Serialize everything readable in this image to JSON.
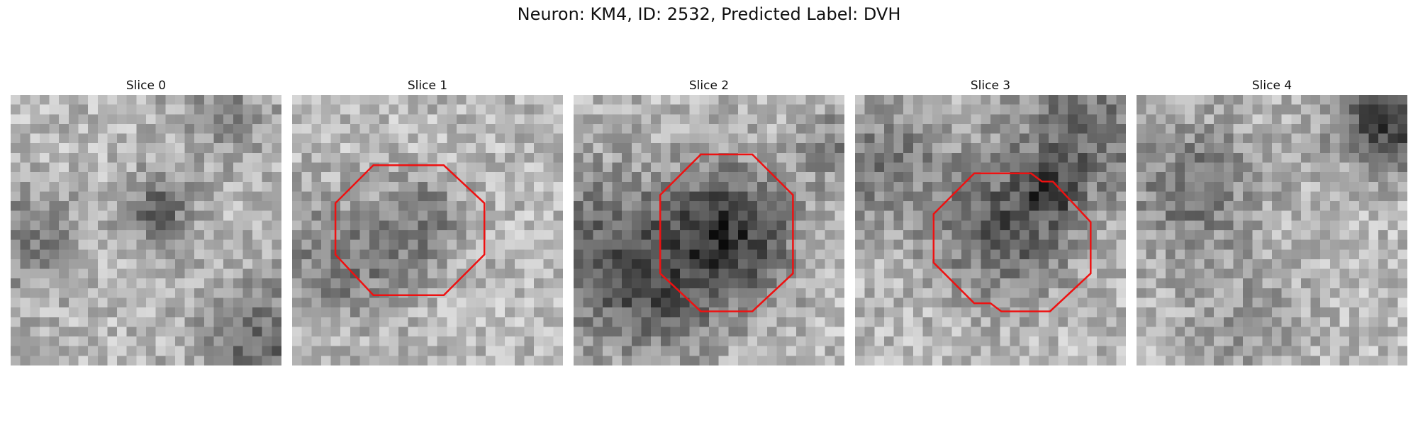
{
  "figure": {
    "title": "Neuron: KM4, ID: 2532, Predicted Label: DVH"
  },
  "contour_color": "#ee1111",
  "panels": [
    {
      "title": "Slice 0",
      "has_contour": false,
      "dark_spots": [
        [
          0.55,
          0.43,
          0.1,
          0.45
        ],
        [
          0.05,
          0.53,
          0.14,
          0.35
        ],
        [
          0.95,
          0.93,
          0.18,
          0.45
        ],
        [
          0.8,
          0.05,
          0.15,
          0.25
        ]
      ],
      "contour": []
    },
    {
      "title": "Slice 1",
      "has_contour": true,
      "dark_spots": [
        [
          0.48,
          0.47,
          0.12,
          0.35
        ],
        [
          0.25,
          0.65,
          0.15,
          0.25
        ],
        [
          0.1,
          0.55,
          0.15,
          0.2
        ]
      ],
      "contour": [
        [
          0.3,
          0.26
        ],
        [
          0.56,
          0.26
        ],
        [
          0.71,
          0.4
        ],
        [
          0.71,
          0.59
        ],
        [
          0.56,
          0.74
        ],
        [
          0.3,
          0.74
        ],
        [
          0.16,
          0.59
        ],
        [
          0.16,
          0.4
        ]
      ]
    },
    {
      "title": "Slice 2",
      "has_contour": true,
      "dark_spots": [
        [
          0.58,
          0.51,
          0.17,
          0.75
        ],
        [
          0.05,
          0.55,
          0.22,
          0.4
        ],
        [
          0.3,
          0.75,
          0.18,
          0.4
        ],
        [
          0.95,
          0.18,
          0.1,
          0.3
        ]
      ],
      "contour": [
        [
          0.47,
          0.22
        ],
        [
          0.66,
          0.22
        ],
        [
          0.81,
          0.37
        ],
        [
          0.81,
          0.66
        ],
        [
          0.66,
          0.8
        ],
        [
          0.47,
          0.8
        ],
        [
          0.32,
          0.66
        ],
        [
          0.32,
          0.37
        ]
      ]
    },
    {
      "title": "Slice 3",
      "has_contour": true,
      "dark_spots": [
        [
          0.55,
          0.5,
          0.17,
          0.55
        ],
        [
          0.85,
          0.15,
          0.2,
          0.45
        ],
        [
          0.1,
          0.25,
          0.18,
          0.35
        ],
        [
          0.72,
          0.36,
          0.06,
          0.45
        ]
      ],
      "contour": [
        [
          0.44,
          0.29
        ],
        [
          0.65,
          0.29
        ],
        [
          0.69,
          0.32
        ],
        [
          0.73,
          0.32
        ],
        [
          0.87,
          0.47
        ],
        [
          0.87,
          0.66
        ],
        [
          0.72,
          0.8
        ],
        [
          0.54,
          0.8
        ],
        [
          0.5,
          0.77
        ],
        [
          0.44,
          0.77
        ],
        [
          0.29,
          0.62
        ],
        [
          0.29,
          0.44
        ]
      ]
    },
    {
      "title": "Slice 4",
      "has_contour": false,
      "dark_spots": [
        [
          0.93,
          0.08,
          0.14,
          0.75
        ],
        [
          0.2,
          0.35,
          0.18,
          0.4
        ],
        [
          0.4,
          0.85,
          0.15,
          0.2
        ]
      ],
      "contour": []
    }
  ]
}
